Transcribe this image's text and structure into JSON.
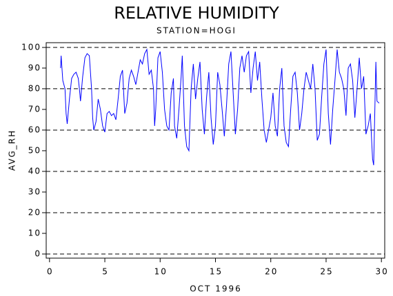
{
  "chart_data": {
    "type": "line",
    "title": "RELATIVE HUMIDITY",
    "subtitle": "STATION=HOGI",
    "y_label": "AVG_RH",
    "x_label": "OCT 1996",
    "x": [
      1.0,
      1.05,
      1.2,
      1.4,
      1.5,
      1.6,
      1.8,
      2.0,
      2.2,
      2.4,
      2.6,
      2.7,
      2.8,
      3.0,
      3.2,
      3.4,
      3.6,
      3.8,
      3.9,
      4.0,
      4.2,
      4.4,
      4.6,
      4.8,
      5.0,
      5.2,
      5.4,
      5.6,
      5.8,
      6.0,
      6.2,
      6.4,
      6.6,
      6.8,
      7.0,
      7.2,
      7.4,
      7.6,
      7.8,
      8.0,
      8.2,
      8.4,
      8.6,
      8.8,
      9.0,
      9.2,
      9.4,
      9.5,
      9.6,
      9.8,
      10.0,
      10.2,
      10.4,
      10.6,
      10.8,
      11.0,
      11.2,
      11.3,
      11.5,
      11.7,
      11.9,
      12.0,
      12.2,
      12.4,
      12.6,
      12.8,
      13.0,
      13.2,
      13.4,
      13.6,
      13.8,
      14.0,
      14.2,
      14.4,
      14.6,
      14.8,
      15.0,
      15.2,
      15.4,
      15.6,
      15.8,
      16.0,
      16.2,
      16.4,
      16.6,
      16.8,
      17.0,
      17.2,
      17.4,
      17.6,
      17.8,
      18.0,
      18.2,
      18.4,
      18.6,
      18.8,
      19.0,
      19.2,
      19.4,
      19.6,
      19.8,
      20.0,
      20.2,
      20.4,
      20.6,
      20.8,
      21.0,
      21.2,
      21.4,
      21.6,
      21.8,
      22.0,
      22.2,
      22.4,
      22.6,
      22.8,
      23.0,
      23.2,
      23.4,
      23.6,
      23.8,
      24.0,
      24.2,
      24.4,
      24.6,
      24.8,
      25.0,
      25.2,
      25.4,
      25.6,
      25.8,
      26.0,
      26.2,
      26.4,
      26.6,
      26.8,
      27.0,
      27.2,
      27.4,
      27.6,
      27.8,
      28.0,
      28.2,
      28.4,
      28.6,
      28.8,
      29.0,
      29.2,
      29.3,
      29.5,
      29.6,
      29.8
    ],
    "series": [
      {
        "color": "#0000ff",
        "values": [
          90,
          96,
          84,
          80,
          68,
          63,
          75,
          85,
          87,
          88,
          85,
          80,
          74,
          86,
          95,
          97,
          96,
          80,
          66,
          60,
          64,
          75,
          70,
          62,
          59,
          68,
          69,
          67,
          68,
          65,
          75,
          86,
          89,
          68,
          73,
          85,
          89,
          86,
          82,
          88,
          94,
          92,
          97,
          99,
          87,
          89,
          80,
          62,
          70,
          95,
          98,
          88,
          70,
          62,
          60,
          78,
          85,
          62,
          56,
          70,
          86,
          96,
          62,
          52,
          50,
          80,
          92,
          75,
          85,
          93,
          70,
          58,
          76,
          88,
          66,
          53,
          62,
          88,
          82,
          70,
          57,
          72,
          92,
          98,
          78,
          58,
          70,
          90,
          96,
          88,
          96,
          98,
          78,
          90,
          98,
          84,
          93,
          75,
          60,
          54,
          60,
          66,
          78,
          62,
          57,
          80,
          90,
          62,
          54,
          52,
          70,
          86,
          88,
          78,
          60,
          68,
          80,
          88,
          84,
          80,
          92,
          80,
          55,
          58,
          76,
          92,
          99,
          68,
          53,
          70,
          84,
          99,
          88,
          85,
          80,
          67,
          90,
          92,
          84,
          66,
          80,
          95,
          80,
          86,
          58,
          62,
          68,
          46,
          43,
          93,
          74,
          73
        ]
      }
    ],
    "xlim": [
      -0.3,
      30.3
    ],
    "ylim": [
      -2,
      102.3
    ],
    "xticks": [
      0,
      5,
      10,
      15,
      20,
      25,
      30
    ],
    "yticks": [
      0,
      10,
      20,
      30,
      40,
      50,
      60,
      70,
      80,
      90,
      100
    ],
    "grid_lines": [
      0,
      20,
      40,
      60,
      80,
      100
    ]
  }
}
